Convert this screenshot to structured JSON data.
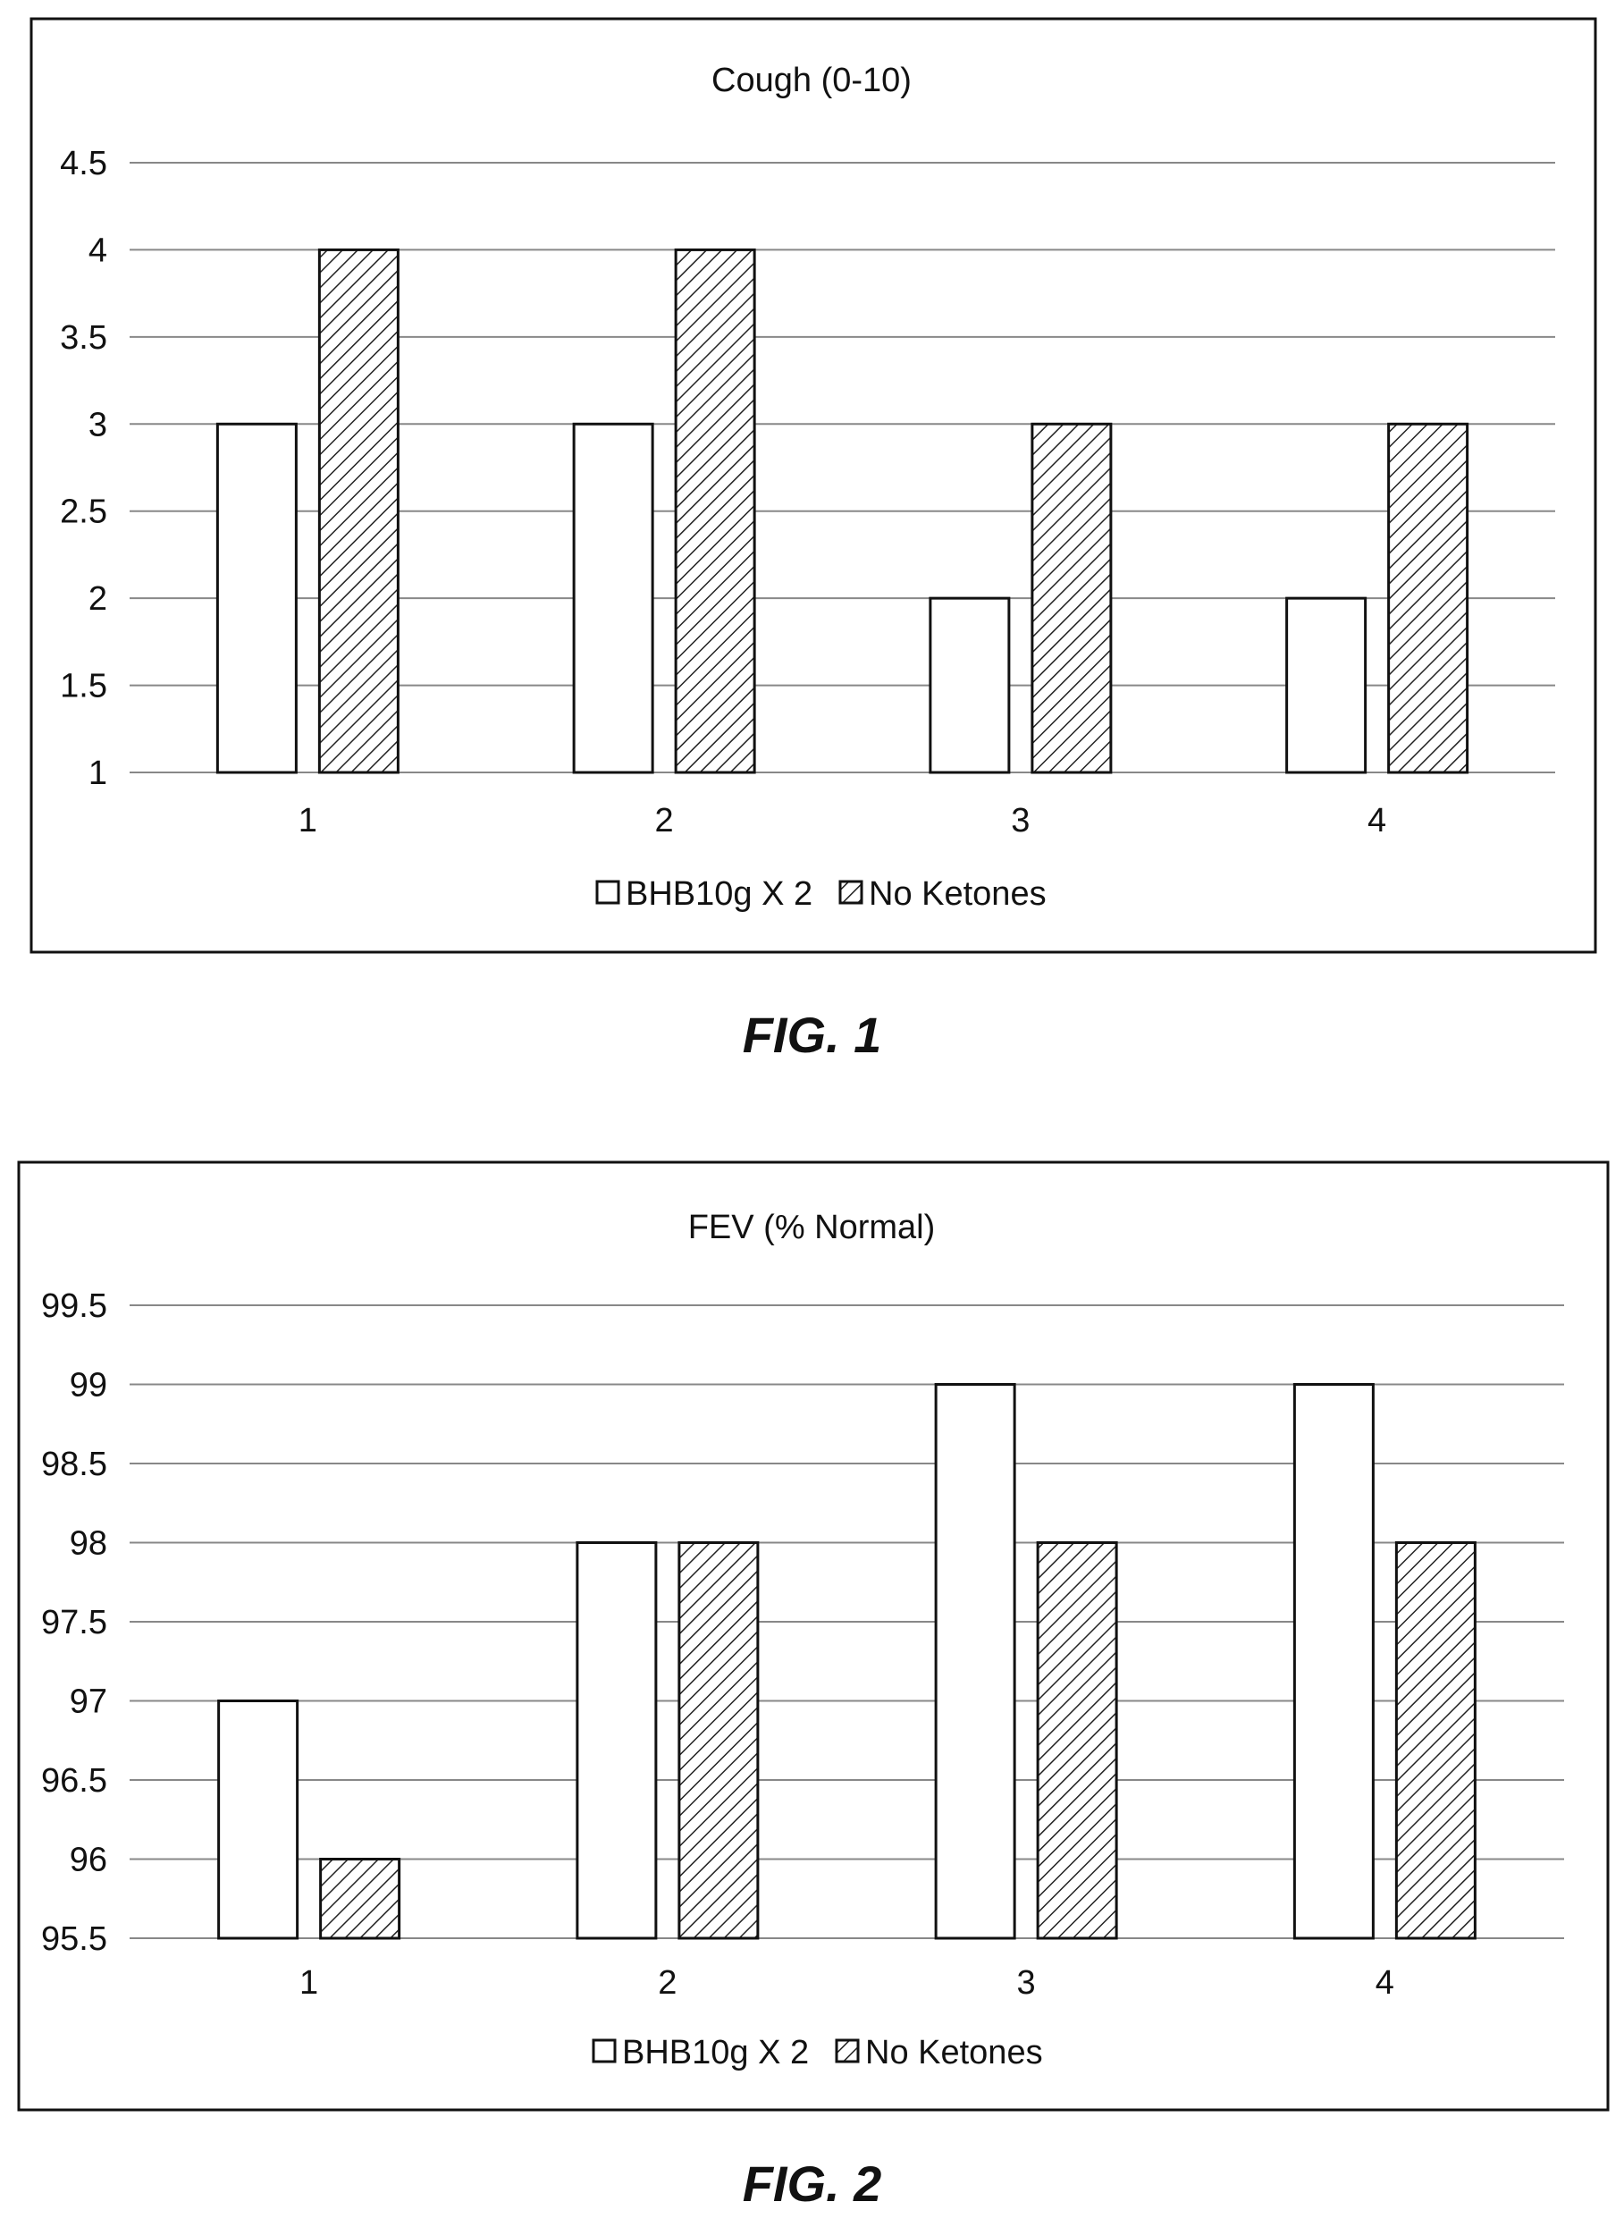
{
  "chart_data": [
    {
      "type": "bar",
      "title": "Cough (0-10)",
      "categories": [
        "1",
        "2",
        "3",
        "4"
      ],
      "series": [
        {
          "name": "BHB10g X 2",
          "values": [
            3,
            3,
            2,
            2
          ]
        },
        {
          "name": "No Ketones",
          "values": [
            4,
            4,
            3,
            3
          ]
        }
      ],
      "ylim": [
        1,
        4.5
      ],
      "yticks": [
        "1",
        "1.5",
        "2",
        "2.5",
        "3",
        "3.5",
        "4",
        "4.5"
      ],
      "grid": true,
      "legend": "bottom",
      "caption": "FIG. 1"
    },
    {
      "type": "bar",
      "title": "FEV (% Normal)",
      "categories": [
        "1",
        "2",
        "3",
        "4"
      ],
      "series": [
        {
          "name": "BHB10g X 2",
          "values": [
            97,
            98,
            99,
            99
          ]
        },
        {
          "name": "No Ketones",
          "values": [
            96,
            98,
            98,
            98
          ]
        }
      ],
      "ylim": [
        95.5,
        99.5
      ],
      "yticks": [
        "95.5",
        "96",
        "96.5",
        "97",
        "97.5",
        "98",
        "98.5",
        "99",
        "99.5"
      ],
      "grid": true,
      "legend": "bottom",
      "caption": "FIG. 2"
    }
  ]
}
